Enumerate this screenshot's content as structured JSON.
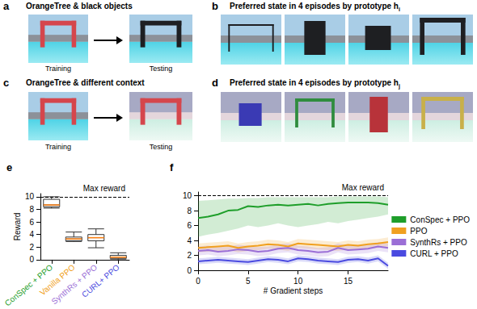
{
  "panels": {
    "a": {
      "label": "a",
      "title": "OrangeTree & black objects",
      "captions": [
        "Training",
        "Testing"
      ]
    },
    "b": {
      "label": "b",
      "title": "Preferred state in 4 episodes by prototype h",
      "subscript": "i"
    },
    "c": {
      "label": "c",
      "title": "OrangeTree & different context",
      "captions": [
        "Training",
        "Testing"
      ]
    },
    "d": {
      "label": "d",
      "title": "Preferred state in 4 episodes by prototype h",
      "subscript": "j"
    },
    "e": {
      "label": "e"
    },
    "f": {
      "label": "f"
    }
  },
  "chart_data": [
    {
      "type": "boxplot",
      "categories": [
        "ConSpec + PPO",
        "Vanilla PPO",
        "SynthRs + PPO",
        "CURL+ PPO"
      ],
      "colors": [
        "#1e9e2a",
        "#f0a020",
        "#9b6fd6",
        "#4a4ae0"
      ],
      "boxes": [
        [
          8.2,
          8.4,
          8.7,
          9.6,
          10.0
        ],
        [
          2.9,
          3.0,
          3.3,
          3.6,
          4.4
        ],
        [
          1.9,
          3.0,
          3.5,
          4.0,
          4.9
        ],
        [
          0.0,
          0.2,
          0.4,
          0.7,
          1.1
        ]
      ],
      "y_label": "Reward",
      "ylim": [
        0,
        10.5
      ],
      "yticks": [
        0,
        2,
        4,
        6,
        8,
        10
      ],
      "annotations": [
        {
          "text": "Max reward",
          "y": 10
        }
      ]
    },
    {
      "type": "line",
      "x": [
        0,
        1,
        2,
        3,
        4,
        5,
        6,
        7,
        8,
        9,
        10,
        11,
        12,
        13,
        14,
        15,
        16,
        17,
        18,
        19
      ],
      "x_label": "# Gradient steps",
      "xlim": [
        0,
        19
      ],
      "xticks": [
        0,
        5,
        10,
        15
      ],
      "ylim": [
        0,
        10.5
      ],
      "yticks": [
        0,
        2,
        4,
        6,
        8,
        10
      ],
      "legend": "right",
      "annotations": [
        {
          "text": "Max reward",
          "y": 10
        }
      ],
      "series": [
        {
          "name": "ConSpec + PPO",
          "color": "#1e9e2a",
          "values": [
            7.0,
            7.2,
            7.5,
            8.0,
            8.1,
            8.6,
            8.5,
            8.7,
            8.8,
            8.7,
            8.8,
            8.9,
            8.7,
            8.9,
            9.0,
            9.1,
            9.1,
            9.1,
            9.0,
            8.8
          ],
          "lower": [
            4.5,
            4.8,
            5.0,
            5.3,
            5.6,
            6.0,
            5.8,
            6.0,
            6.3,
            6.0,
            5.8,
            6.0,
            6.2,
            6.5,
            6.3,
            6.6,
            6.8,
            7.0,
            7.2,
            7.5
          ],
          "upper": [
            9.3,
            9.4,
            9.5,
            9.6,
            9.6,
            9.7,
            9.7,
            9.8,
            9.8,
            9.8,
            9.8,
            9.8,
            9.8,
            9.8,
            9.9,
            9.9,
            9.9,
            9.9,
            9.9,
            9.8
          ]
        },
        {
          "name": "PPO",
          "color": "#f0a020",
          "values": [
            3.0,
            3.1,
            3.2,
            3.3,
            3.0,
            3.2,
            3.3,
            3.5,
            3.4,
            3.2,
            3.6,
            3.5,
            3.4,
            3.3,
            3.2,
            3.4,
            3.3,
            3.5,
            3.6,
            3.8
          ],
          "lower": [
            2.4,
            2.5,
            2.6,
            2.7,
            2.4,
            2.6,
            2.7,
            2.9,
            2.8,
            2.6,
            3.0,
            2.9,
            2.8,
            2.7,
            2.6,
            2.8,
            2.7,
            2.9,
            3.0,
            3.2
          ],
          "upper": [
            3.6,
            3.7,
            3.8,
            3.9,
            3.6,
            3.8,
            3.9,
            4.1,
            4.0,
            3.8,
            4.2,
            4.1,
            4.0,
            3.9,
            3.8,
            4.0,
            3.9,
            4.1,
            4.2,
            4.4
          ]
        },
        {
          "name": "SynthRs + PPO",
          "color": "#9b6fd6",
          "values": [
            2.6,
            2.7,
            2.5,
            2.6,
            2.8,
            2.7,
            2.5,
            2.6,
            2.9,
            3.0,
            2.7,
            2.6,
            2.4,
            2.5,
            3.0,
            2.7,
            2.8,
            2.9,
            3.2,
            3.0
          ],
          "lower": [
            2.0,
            2.1,
            1.9,
            2.0,
            2.2,
            2.1,
            1.9,
            2.0,
            2.3,
            2.4,
            2.1,
            2.0,
            1.8,
            1.9,
            2.4,
            2.1,
            2.2,
            2.3,
            2.6,
            2.4
          ],
          "upper": [
            3.2,
            3.3,
            3.1,
            3.2,
            3.4,
            3.3,
            3.1,
            3.2,
            3.5,
            3.6,
            3.3,
            3.2,
            3.0,
            3.1,
            3.6,
            3.3,
            3.4,
            3.5,
            3.8,
            3.6
          ]
        },
        {
          "name": "CURL + PPO",
          "color": "#4a4ae0",
          "values": [
            1.2,
            1.3,
            1.4,
            1.3,
            1.2,
            1.1,
            1.3,
            1.5,
            1.4,
            1.2,
            1.6,
            1.5,
            1.3,
            1.2,
            1.1,
            1.4,
            1.5,
            1.3,
            1.6,
            0.6
          ],
          "lower": [
            0.8,
            0.9,
            1.0,
            0.9,
            0.8,
            0.7,
            0.9,
            1.1,
            1.0,
            0.8,
            1.2,
            1.1,
            0.9,
            0.8,
            0.7,
            1.0,
            1.1,
            0.9,
            1.2,
            0.2
          ],
          "upper": [
            1.6,
            1.7,
            1.8,
            1.7,
            1.6,
            1.5,
            1.7,
            1.9,
            1.8,
            1.6,
            2.0,
            1.9,
            1.7,
            1.6,
            1.5,
            1.8,
            1.9,
            1.7,
            2.0,
            1.0
          ]
        }
      ]
    }
  ]
}
